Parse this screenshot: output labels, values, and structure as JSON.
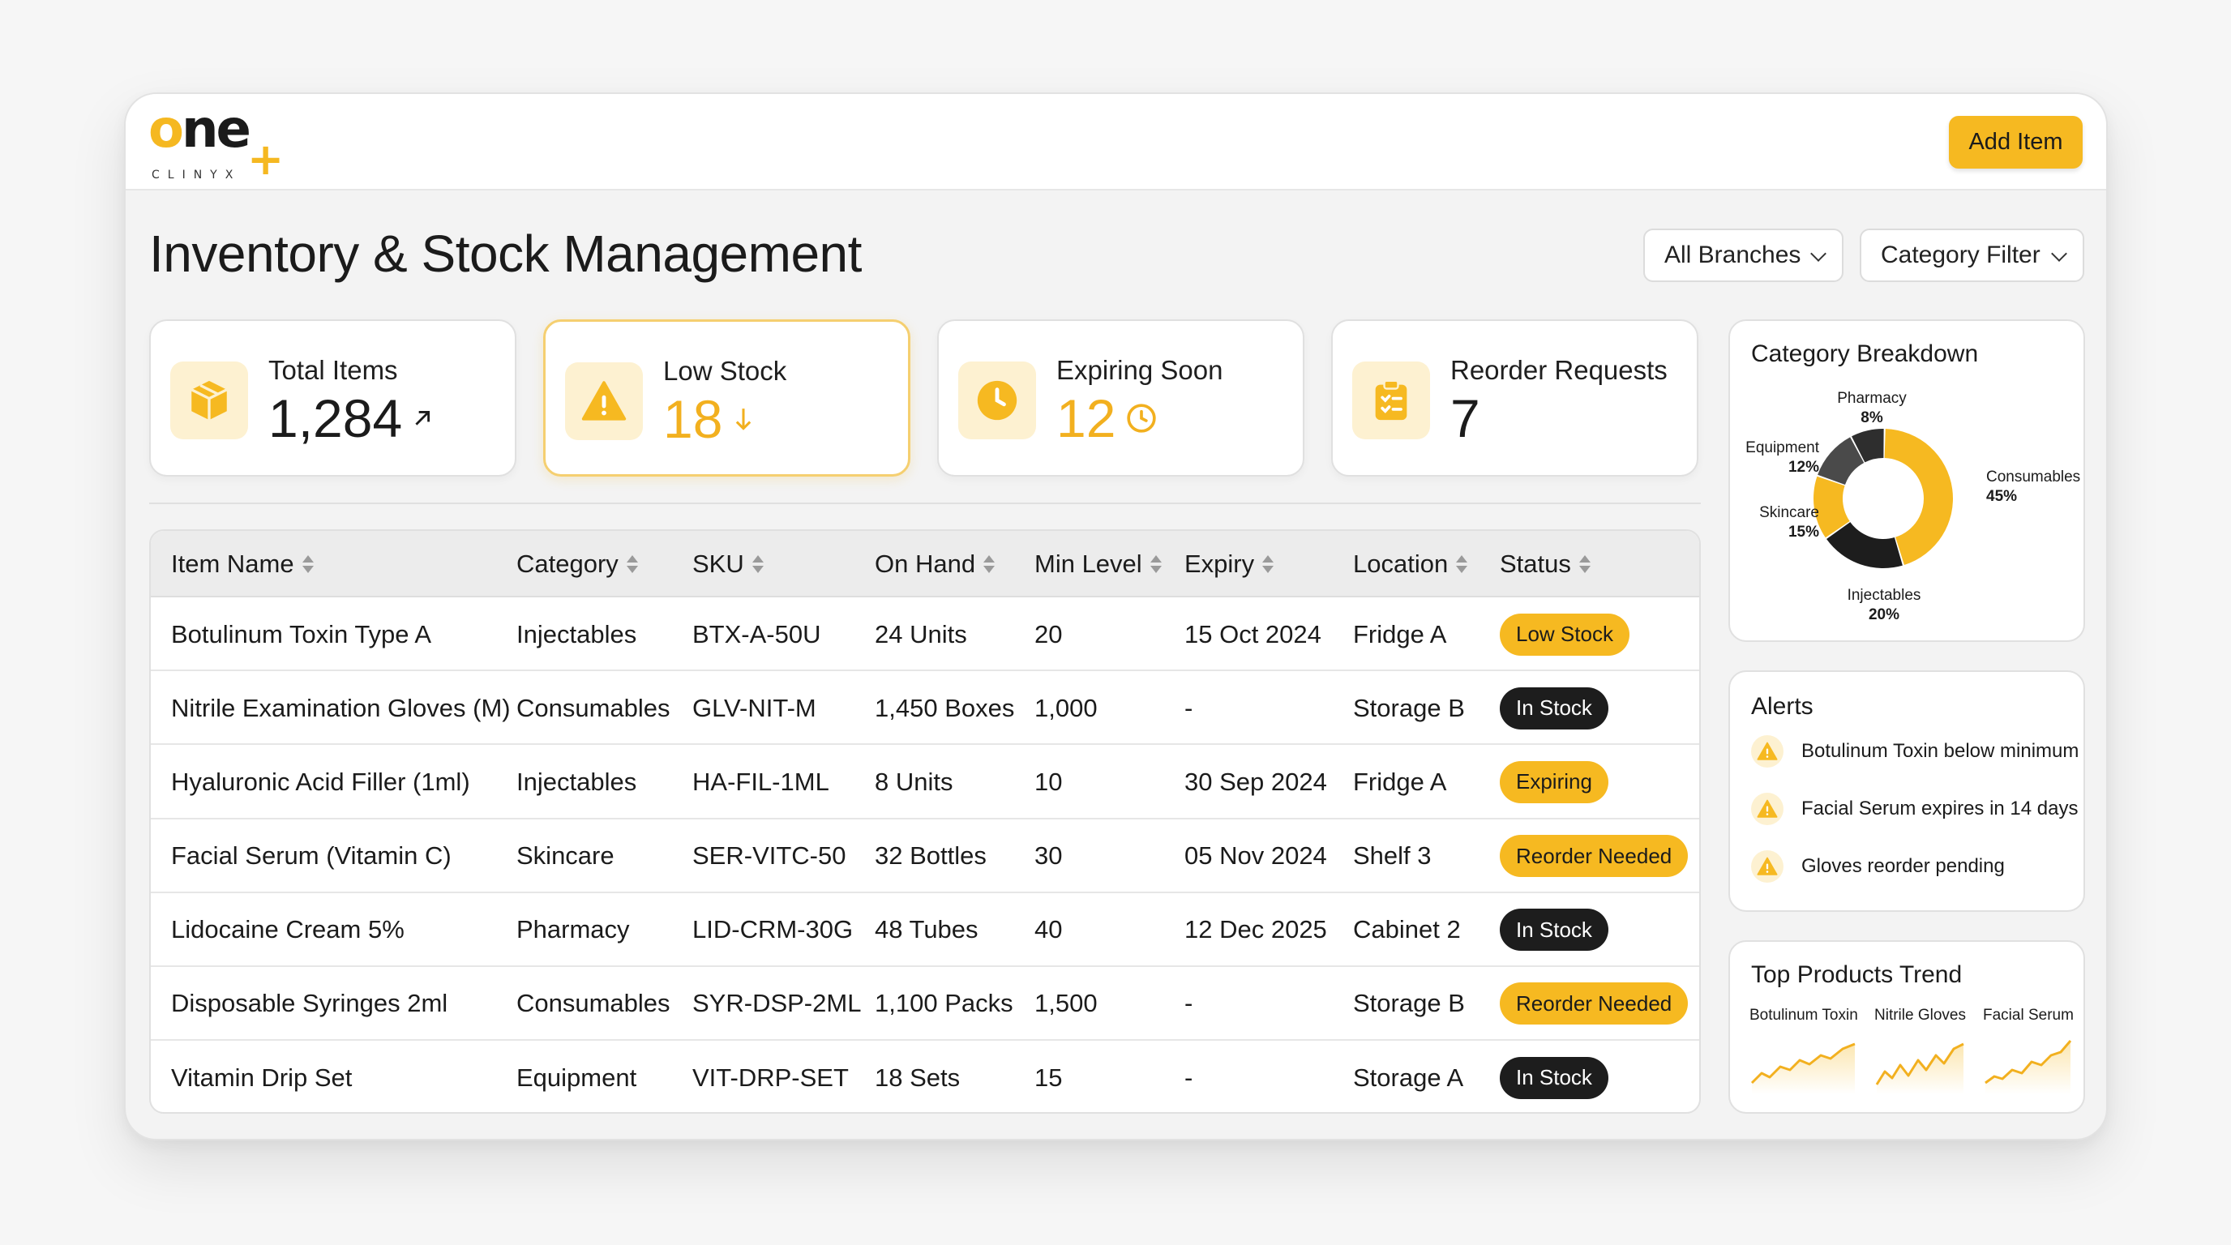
{
  "app": {
    "logo_word_start": "o",
    "logo_word_rest": "ne",
    "logo_plus": "+",
    "logo_sub": "CLINYX",
    "add_item_label": "Add Item"
  },
  "page": {
    "title": "Inventory & Stock Management",
    "filters": {
      "branches": "All Branches",
      "category": "Category Filter"
    }
  },
  "kpis": [
    {
      "label": "Total Items",
      "value": "1,284",
      "icon": "box-icon",
      "trend_icon": "arrow-up-right-icon"
    },
    {
      "label": "Low Stock",
      "value": "18",
      "icon": "warning-icon",
      "trend_icon": "arrow-down-icon"
    },
    {
      "label": "Expiring Soon",
      "value": "12",
      "icon": "clock-icon",
      "trend_icon": "clock-outline-icon"
    },
    {
      "label": "Reorder Requests",
      "value": "7",
      "icon": "clipboard-icon"
    }
  ],
  "table": {
    "columns": [
      "Item Name",
      "Category",
      "SKU",
      "On Hand",
      "Min Level",
      "Expiry",
      "Location",
      "Status"
    ],
    "rows": [
      {
        "name": "Botulinum Toxin Type A",
        "category": "Injectables",
        "sku": "BTX-A-50U",
        "on_hand": "24 Units",
        "min": "20",
        "expiry": "15 Oct 2024",
        "location": "Fridge A",
        "status": "Low Stock",
        "status_style": "yellow"
      },
      {
        "name": "Nitrile Examination Gloves (M)",
        "category": "Consumables",
        "sku": "GLV-NIT-M",
        "on_hand": "1,450 Boxes",
        "min": "1,000",
        "expiry": "-",
        "location": "Storage B",
        "status": "In Stock",
        "status_style": "dark"
      },
      {
        "name": "Hyaluronic Acid Filler (1ml)",
        "category": "Injectables",
        "sku": "HA-FIL-1ML",
        "on_hand": "8 Units",
        "min": "10",
        "expiry": "30 Sep 2024",
        "location": "Fridge A",
        "status": "Expiring",
        "status_style": "yellow"
      },
      {
        "name": "Facial Serum (Vitamin C)",
        "category": "Skincare",
        "sku": "SER-VITC-50",
        "on_hand": "32 Bottles",
        "min": "30",
        "expiry": "05 Nov 2024",
        "location": "Shelf 3",
        "status": "Reorder Needed",
        "status_style": "yellow"
      },
      {
        "name": "Lidocaine Cream 5%",
        "category": "Pharmacy",
        "sku": "LID-CRM-30G",
        "on_hand": "48 Tubes",
        "min": "40",
        "expiry": "12 Dec 2025",
        "location": "Cabinet 2",
        "status": "In Stock",
        "status_style": "dark"
      },
      {
        "name": "Disposable Syringes 2ml",
        "category": "Consumables",
        "sku": "SYR-DSP-2ML",
        "on_hand": "1,100 Packs",
        "min": "1,500",
        "expiry": "-",
        "location": "Storage B",
        "status": "Reorder Needed",
        "status_style": "yellow"
      },
      {
        "name": "Vitamin Drip Set",
        "category": "Equipment",
        "sku": "VIT-DRP-SET",
        "on_hand": "18 Sets",
        "min": "15",
        "expiry": "-",
        "location": "Storage A",
        "status": "In Stock",
        "status_style": "dark"
      }
    ]
  },
  "category_breakdown": {
    "title": "Category Breakdown",
    "slices": [
      {
        "name": "Consumables",
        "pct_label": "45%",
        "value": 45,
        "color": "#f6b921"
      },
      {
        "name": "Injectables",
        "pct_label": "20%",
        "value": 20,
        "color": "#1d1d1d"
      },
      {
        "name": "Skincare",
        "pct_label": "15%",
        "value": 15,
        "color": "#f6b921"
      },
      {
        "name": "Equipment",
        "pct_label": "12%",
        "value": 12,
        "color": "#4a4a4a"
      },
      {
        "name": "Pharmacy",
        "pct_label": "8%",
        "value": 8,
        "color": "#2e2e2e"
      }
    ]
  },
  "alerts": {
    "title": "Alerts",
    "items": [
      "Botulinum Toxin below minimum",
      "Facial Serum expires in 14 days",
      "Gloves reorder pending"
    ]
  },
  "trend": {
    "title": "Top Products Trend",
    "items": [
      {
        "name": "Botulinum Toxin"
      },
      {
        "name": "Nitrile Gloves"
      },
      {
        "name": "Facial Serum"
      }
    ]
  },
  "colors": {
    "accent": "#f6b921",
    "dark": "#1d1d1d",
    "accent_light": "#fdf1d1"
  }
}
